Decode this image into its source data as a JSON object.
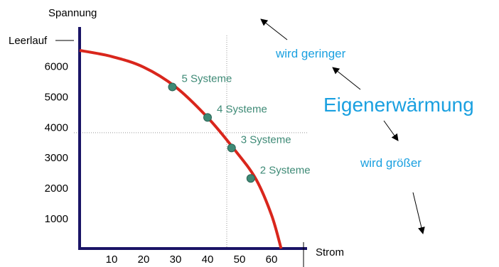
{
  "chart_data": {
    "type": "line",
    "ylabel": "Spannung",
    "xlabel": "Strom",
    "y_top_label": "Leerlauf",
    "x_ticks": [
      "10",
      "20",
      "30",
      "40",
      "50",
      "60"
    ],
    "y_ticks": [
      "1000",
      "2000",
      "3000",
      "4000",
      "5000",
      "6000"
    ],
    "xlim": [
      0,
      70
    ],
    "ylim": [
      0,
      7500
    ],
    "curve": {
      "x": [
        0,
        10,
        20,
        30,
        40,
        48,
        55,
        60,
        63
      ],
      "y": [
        6500,
        6300,
        5950,
        5300,
        4300,
        3300,
        2300,
        1100,
        0
      ]
    },
    "points": [
      {
        "label": "5 Systeme",
        "x": 29,
        "y": 5300
      },
      {
        "label": "4 Systeme",
        "x": 40,
        "y": 4300
      },
      {
        "label": "3 Systeme",
        "x": 47.5,
        "y": 3300
      },
      {
        "label": "2 Systeme",
        "x": 53.5,
        "y": 2300
      }
    ],
    "guide_lines": {
      "x": 46,
      "y": 3800
    },
    "grid": false
  },
  "annotations": {
    "decrease": "wird geringer",
    "heating": "Eigenerwärmung",
    "increase": "wird größer"
  },
  "colors": {
    "axis": "#1a1466",
    "curve": "#d9261c",
    "point": "#3e8a76",
    "point_label": "#3e8a76",
    "annotation": "#1aa0e0",
    "guide": "#999999"
  }
}
